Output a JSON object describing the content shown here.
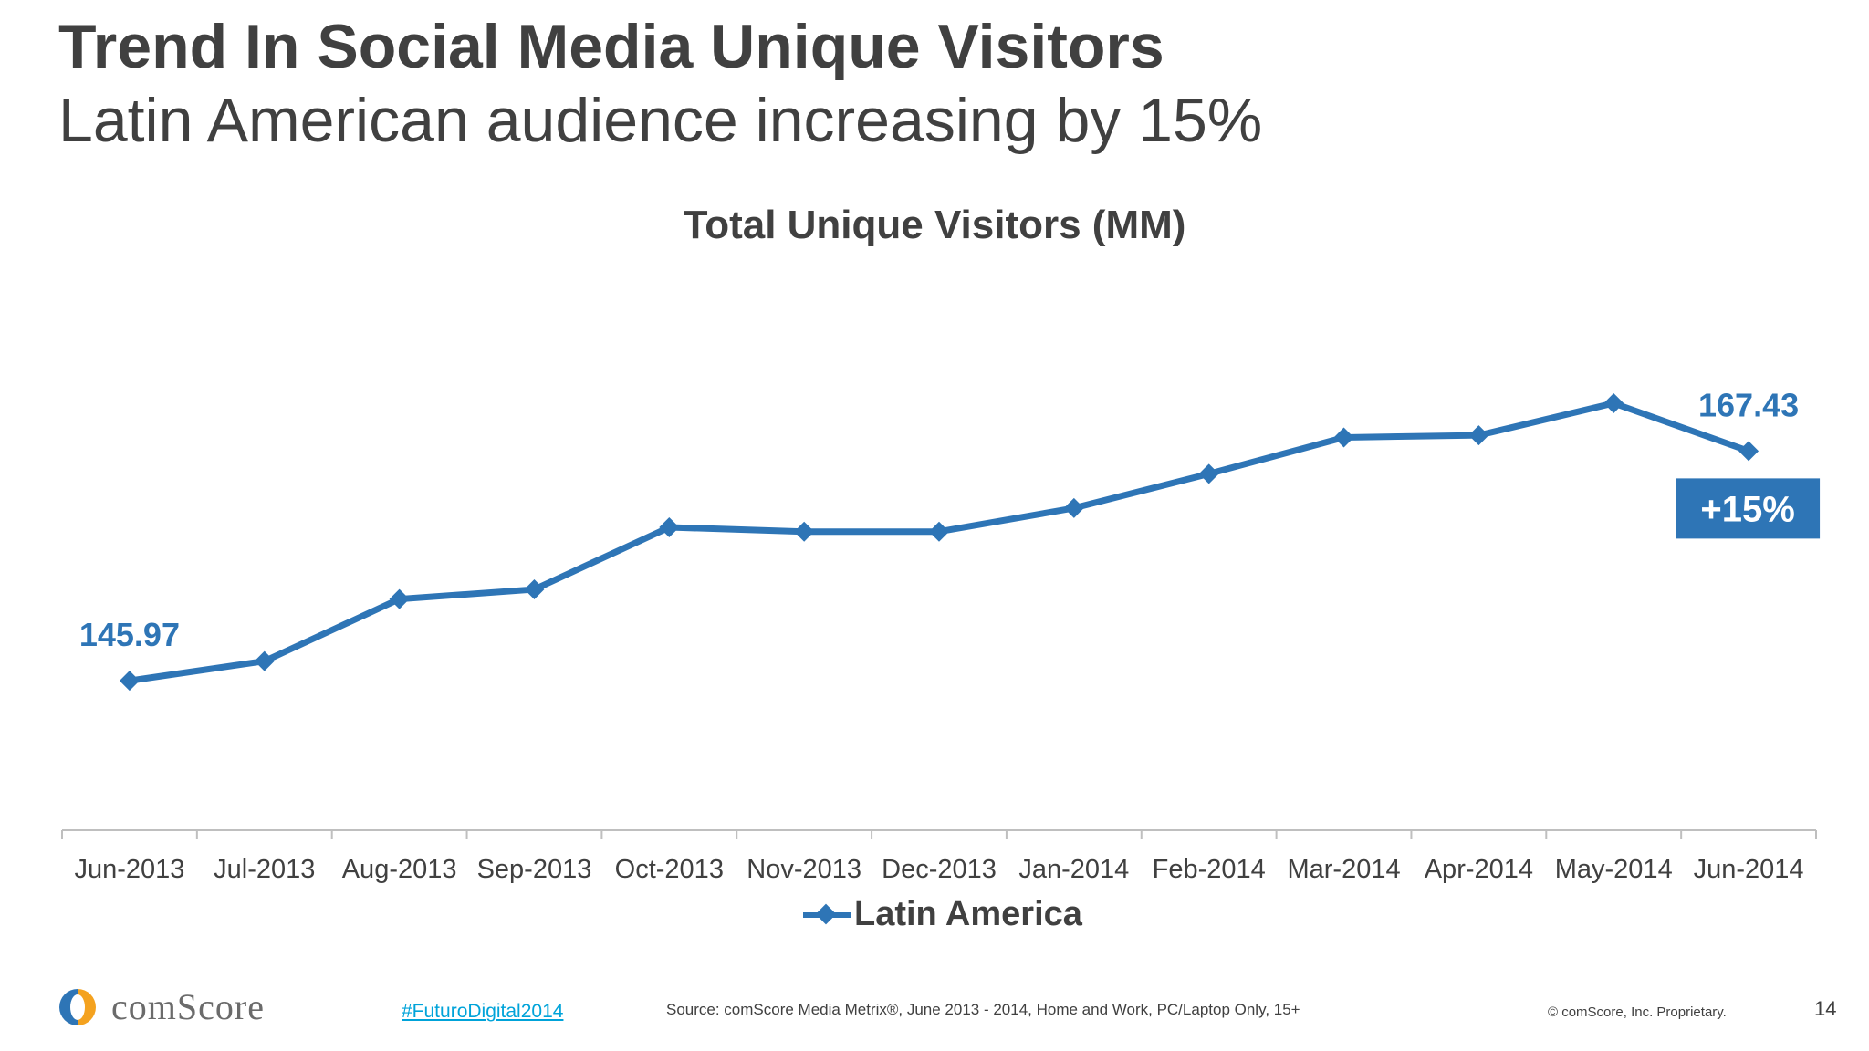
{
  "header": {
    "title": "Trend In Social Media Unique Visitors",
    "subtitle": "Latin American audience increasing by 15%"
  },
  "chart_data": {
    "type": "line",
    "title": "Total Unique Visitors (MM)",
    "categories": [
      "Jun-2013",
      "Jul-2013",
      "Aug-2013",
      "Sep-2013",
      "Oct-2013",
      "Nov-2013",
      "Dec-2013",
      "Jan-2014",
      "Feb-2014",
      "Mar-2014",
      "Apr-2014",
      "May-2014",
      "Jun-2014"
    ],
    "series": [
      {
        "name": "Latin America",
        "values": [
          145.97,
          147.8,
          153.6,
          154.5,
          160.3,
          159.9,
          159.9,
          162.1,
          165.3,
          168.7,
          168.9,
          171.9,
          167.43
        ],
        "color": "#2E75B6"
      }
    ],
    "data_labels": [
      {
        "index": 0,
        "text": "145.97"
      },
      {
        "index": 12,
        "text": "167.43"
      }
    ],
    "callout": {
      "text": "+15%",
      "color": "#2E75B6"
    },
    "ylim": [
      132,
      184
    ],
    "legend_position": "bottom",
    "grid": false
  },
  "footer": {
    "logo_text": "comScore",
    "hashtag": "#FuturoDigital2014",
    "source": "Source: comScore Media Metrix®, June 2013 - 2014, Home and Work, PC/Laptop Only, 15+",
    "copyright": "© comScore, Inc. Proprietary.",
    "page_number": "14"
  }
}
